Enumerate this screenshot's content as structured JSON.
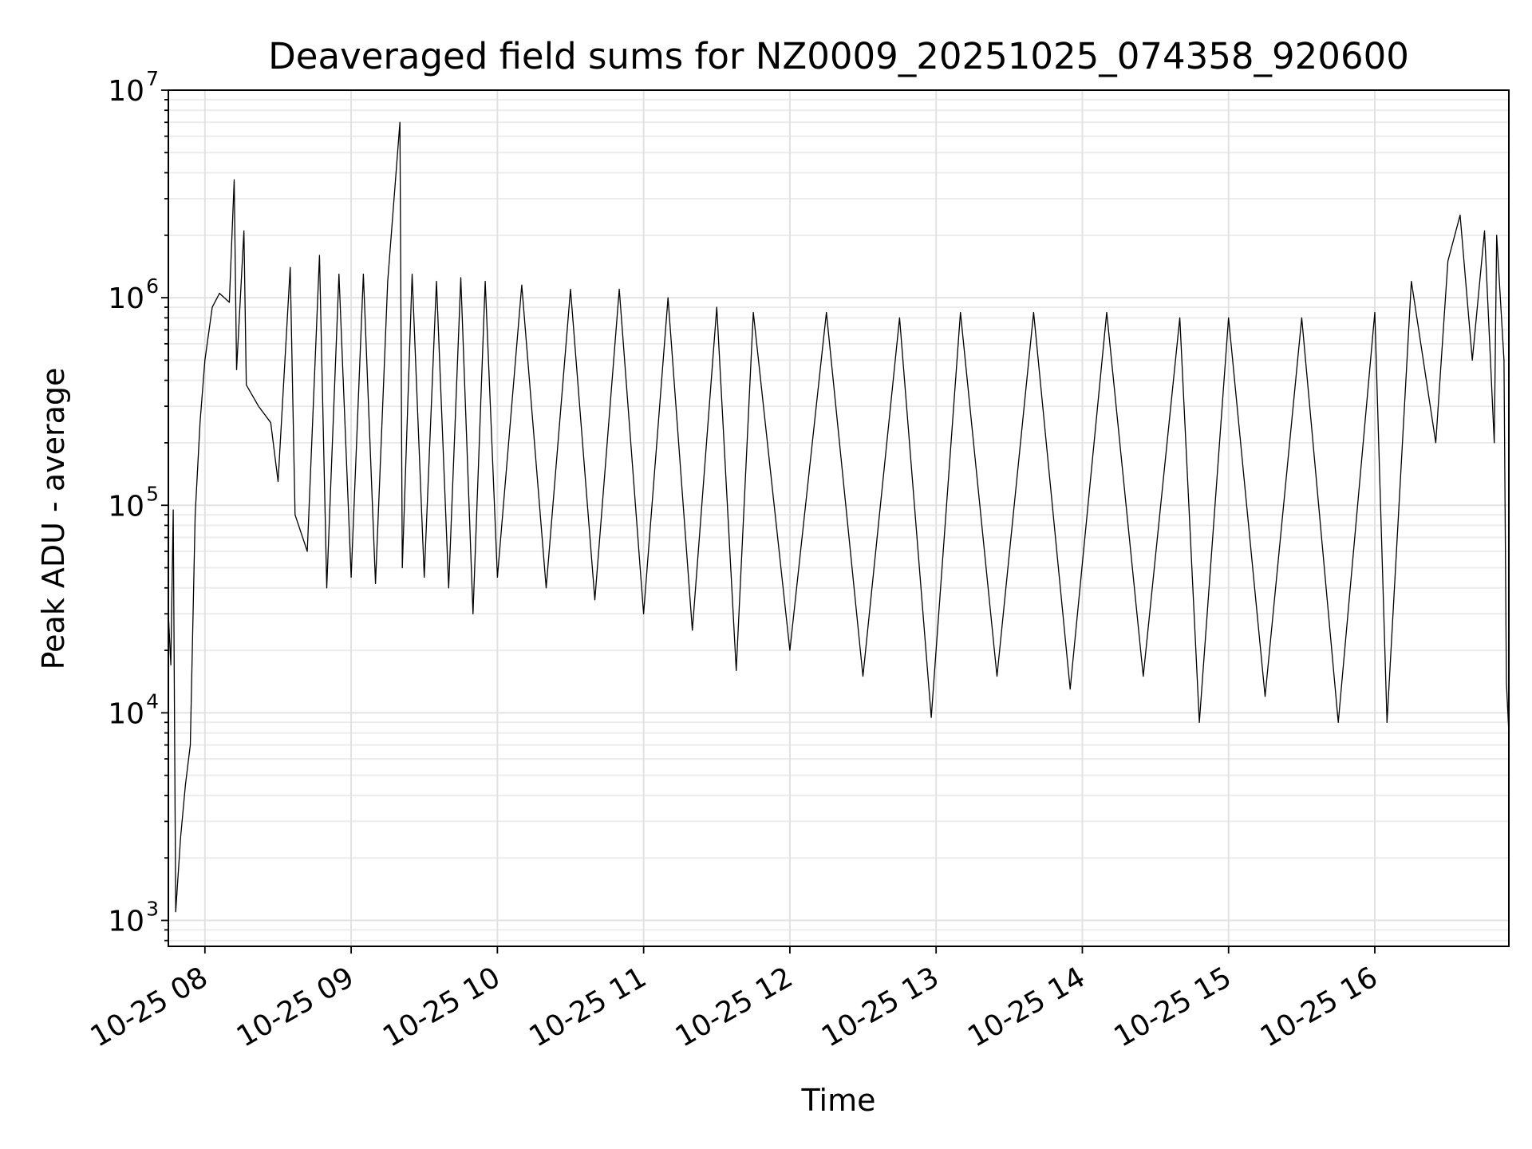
{
  "chart_data": {
    "type": "line",
    "title": "Deaveraged field sums for NZ0009_20251025_074358_920600",
    "xlabel": "Time",
    "ylabel": "Peak ADU - average",
    "yscale": "log",
    "ylim": [
      750,
      10000000
    ],
    "xlim": [
      "2025-10-25 07:45",
      "2025-10-25 16:55"
    ],
    "grid": true,
    "x_ticks": [
      {
        "label": "10-25 08",
        "value": "2025-10-25 08:00"
      },
      {
        "label": "10-25 09",
        "value": "2025-10-25 09:00"
      },
      {
        "label": "10-25 10",
        "value": "2025-10-25 10:00"
      },
      {
        "label": "10-25 11",
        "value": "2025-10-25 11:00"
      },
      {
        "label": "10-25 12",
        "value": "2025-10-25 12:00"
      },
      {
        "label": "10-25 13",
        "value": "2025-10-25 13:00"
      },
      {
        "label": "10-25 14",
        "value": "2025-10-25 14:00"
      },
      {
        "label": "10-25 15",
        "value": "2025-10-25 15:00"
      },
      {
        "label": "10-25 16",
        "value": "2025-10-25 16:00"
      }
    ],
    "y_ticks": [
      {
        "base": "10",
        "exp": "3",
        "value": 1000
      },
      {
        "base": "10",
        "exp": "4",
        "value": 10000
      },
      {
        "base": "10",
        "exp": "5",
        "value": 100000
      },
      {
        "base": "10",
        "exp": "6",
        "value": 1000000
      },
      {
        "base": "10",
        "exp": "7",
        "value": 10000000
      }
    ],
    "series": [
      {
        "color": "#000000",
        "points": [
          [
            "2025-10-25 07:45",
            30000
          ],
          [
            "2025-10-25 07:46",
            17000
          ],
          [
            "2025-10-25 07:47",
            95000
          ],
          [
            "2025-10-25 07:48",
            1100
          ],
          [
            "2025-10-25 07:50",
            2500
          ],
          [
            "2025-10-25 07:52",
            4500
          ],
          [
            "2025-10-25 07:54",
            7000
          ],
          [
            "2025-10-25 07:56",
            90000
          ],
          [
            "2025-10-25 07:58",
            250000
          ],
          [
            "2025-10-25 08:00",
            500000
          ],
          [
            "2025-10-25 08:03",
            900000
          ],
          [
            "2025-10-25 08:06",
            1050000
          ],
          [
            "2025-10-25 08:10",
            950000
          ],
          [
            "2025-10-25 08:12",
            3700000
          ],
          [
            "2025-10-25 08:13",
            450000
          ],
          [
            "2025-10-25 08:16",
            2100000
          ],
          [
            "2025-10-25 08:17",
            380000
          ],
          [
            "2025-10-25 08:22",
            300000
          ],
          [
            "2025-10-25 08:27",
            250000
          ],
          [
            "2025-10-25 08:30",
            130000
          ],
          [
            "2025-10-25 08:35",
            1400000
          ],
          [
            "2025-10-25 08:37",
            90000
          ],
          [
            "2025-10-25 08:42",
            60000
          ],
          [
            "2025-10-25 08:47",
            1600000
          ],
          [
            "2025-10-25 08:50",
            40000
          ],
          [
            "2025-10-25 08:55",
            1300000
          ],
          [
            "2025-10-25 09:00",
            45000
          ],
          [
            "2025-10-25 09:05",
            1300000
          ],
          [
            "2025-10-25 09:10",
            42000
          ],
          [
            "2025-10-25 09:15",
            1200000
          ],
          [
            "2025-10-25 09:20",
            7000000
          ],
          [
            "2025-10-25 09:21",
            50000
          ],
          [
            "2025-10-25 09:25",
            1300000
          ],
          [
            "2025-10-25 09:30",
            45000
          ],
          [
            "2025-10-25 09:35",
            1200000
          ],
          [
            "2025-10-25 09:40",
            40000
          ],
          [
            "2025-10-25 09:45",
            1250000
          ],
          [
            "2025-10-25 09:50",
            30000
          ],
          [
            "2025-10-25 09:55",
            1200000
          ],
          [
            "2025-10-25 10:00",
            45000
          ],
          [
            "2025-10-25 10:10",
            1150000
          ],
          [
            "2025-10-25 10:20",
            40000
          ],
          [
            "2025-10-25 10:30",
            1100000
          ],
          [
            "2025-10-25 10:40",
            35000
          ],
          [
            "2025-10-25 10:50",
            1100000
          ],
          [
            "2025-10-25 11:00",
            30000
          ],
          [
            "2025-10-25 11:10",
            1000000
          ],
          [
            "2025-10-25 11:20",
            25000
          ],
          [
            "2025-10-25 11:30",
            900000
          ],
          [
            "2025-10-25 11:38",
            16000
          ],
          [
            "2025-10-25 11:45",
            850000
          ],
          [
            "2025-10-25 12:00",
            20000
          ],
          [
            "2025-10-25 12:15",
            850000
          ],
          [
            "2025-10-25 12:30",
            15000
          ],
          [
            "2025-10-25 12:45",
            800000
          ],
          [
            "2025-10-25 12:58",
            9500
          ],
          [
            "2025-10-25 13:10",
            850000
          ],
          [
            "2025-10-25 13:25",
            15000
          ],
          [
            "2025-10-25 13:40",
            850000
          ],
          [
            "2025-10-25 13:55",
            13000
          ],
          [
            "2025-10-25 14:10",
            850000
          ],
          [
            "2025-10-25 14:25",
            15000
          ],
          [
            "2025-10-25 14:40",
            800000
          ],
          [
            "2025-10-25 14:48",
            9000
          ],
          [
            "2025-10-25 15:00",
            800000
          ],
          [
            "2025-10-25 15:15",
            12000
          ],
          [
            "2025-10-25 15:30",
            800000
          ],
          [
            "2025-10-25 15:45",
            9000
          ],
          [
            "2025-10-25 16:00",
            850000
          ],
          [
            "2025-10-25 16:05",
            9000
          ],
          [
            "2025-10-25 16:15",
            1200000
          ],
          [
            "2025-10-25 16:25",
            200000
          ],
          [
            "2025-10-25 16:30",
            1500000
          ],
          [
            "2025-10-25 16:35",
            2500000
          ],
          [
            "2025-10-25 16:40",
            500000
          ],
          [
            "2025-10-25 16:45",
            2100000
          ],
          [
            "2025-10-25 16:49",
            200000
          ],
          [
            "2025-10-25 16:50",
            2000000
          ],
          [
            "2025-10-25 16:53",
            500000
          ],
          [
            "2025-10-25 16:54",
            14000
          ],
          [
            "2025-10-25 16:55",
            8000
          ]
        ]
      }
    ]
  }
}
